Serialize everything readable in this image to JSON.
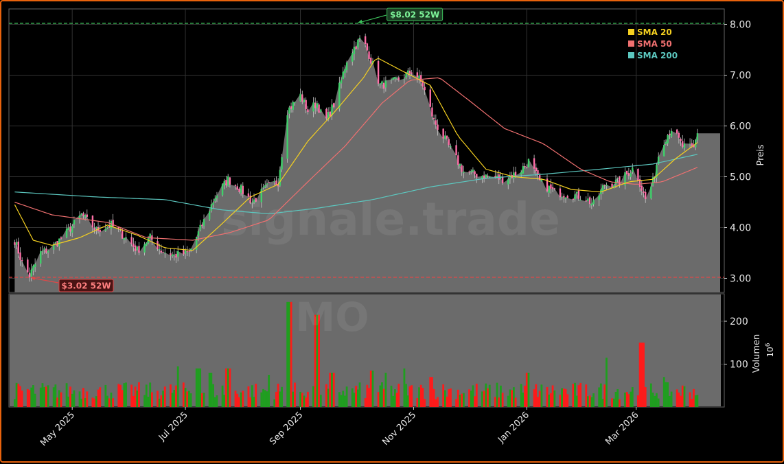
{
  "watermark": {
    "main": "signale.trade",
    "sub": "MO"
  },
  "colors": {
    "frame": "#e8620c",
    "up": "#1f9e1f",
    "down": "#ff1a1a",
    "sma20": "#f5d020",
    "sma50": "#f07070",
    "sma200": "#5cc8c0",
    "high_line": "#3cbf5a",
    "low_line": "#e04848",
    "area": "#6b6b6b"
  },
  "annotations": {
    "high": {
      "label": "$8.02 52W",
      "value": 8.02,
      "date": "2025-10-01"
    },
    "low": {
      "label": "$3.02 52W",
      "value": 3.02,
      "date": "2025-04-08"
    }
  },
  "legend": {
    "placement": "top-right",
    "items": [
      {
        "label": "SMA 20",
        "color": "#f5d020"
      },
      {
        "label": "SMA 50",
        "color": "#f07070"
      },
      {
        "label": "SMA 200",
        "color": "#5cc8c0"
      }
    ]
  },
  "chart_data": [
    {
      "type": "candlestick",
      "title": "",
      "xlabel": "",
      "ylabel": "Preis",
      "ylim": [
        2.7,
        8.3
      ],
      "yticks": [
        "3.00",
        "4.00",
        "5.00",
        "6.00",
        "7.00",
        "8.00"
      ],
      "x_range": [
        "2025-03-29",
        "2026-04-06"
      ],
      "grid": true,
      "price_keypoints": [
        [
          "2025-03-31",
          3.75
        ],
        [
          "2025-04-04",
          3.3
        ],
        [
          "2025-04-08",
          3.05
        ],
        [
          "2025-04-14",
          3.5
        ],
        [
          "2025-04-20",
          3.6
        ],
        [
          "2025-04-28",
          3.9
        ],
        [
          "2025-05-06",
          4.25
        ],
        [
          "2025-05-14",
          3.95
        ],
        [
          "2025-05-22",
          4.05
        ],
        [
          "2025-05-30",
          3.8
        ],
        [
          "2025-06-05",
          3.55
        ],
        [
          "2025-06-12",
          3.8
        ],
        [
          "2025-06-18",
          3.55
        ],
        [
          "2025-06-25",
          3.45
        ],
        [
          "2025-07-03",
          3.5
        ],
        [
          "2025-07-10",
          4.05
        ],
        [
          "2025-07-17",
          4.6
        ],
        [
          "2025-07-24",
          4.95
        ],
        [
          "2025-07-31",
          4.75
        ],
        [
          "2025-08-06",
          4.5
        ],
        [
          "2025-08-14",
          4.8
        ],
        [
          "2025-08-20",
          4.9
        ],
        [
          "2025-08-25",
          6.3
        ],
        [
          "2025-09-01",
          6.6
        ],
        [
          "2025-09-05",
          6.3
        ],
        [
          "2025-09-10",
          6.45
        ],
        [
          "2025-09-14",
          6.05
        ],
        [
          "2025-09-20",
          6.5
        ],
        [
          "2025-09-26",
          7.3
        ],
        [
          "2025-09-30",
          7.55
        ],
        [
          "2025-10-04",
          7.75
        ],
        [
          "2025-10-08",
          7.4
        ],
        [
          "2025-10-14",
          6.8
        ],
        [
          "2025-10-20",
          6.85
        ],
        [
          "2025-10-26",
          6.95
        ],
        [
          "2025-11-01",
          7.1
        ],
        [
          "2025-11-06",
          6.8
        ],
        [
          "2025-11-12",
          6.1
        ],
        [
          "2025-11-20",
          5.6
        ],
        [
          "2025-11-28",
          5.1
        ],
        [
          "2025-12-04",
          5.05
        ],
        [
          "2025-12-12",
          5.0
        ],
        [
          "2025-12-20",
          4.95
        ],
        [
          "2025-12-28",
          5.1
        ],
        [
          "2026-01-02",
          5.3
        ],
        [
          "2026-01-08",
          4.9
        ],
        [
          "2026-01-16",
          4.7
        ],
        [
          "2026-01-24",
          4.65
        ],
        [
          "2026-02-01",
          4.6
        ],
        [
          "2026-02-06",
          4.45
        ],
        [
          "2026-02-12",
          4.85
        ],
        [
          "2026-02-20",
          4.9
        ],
        [
          "2026-02-28",
          5.2
        ],
        [
          "2026-03-06",
          4.55
        ],
        [
          "2026-03-10",
          4.9
        ],
        [
          "2026-03-14",
          5.6
        ],
        [
          "2026-03-20",
          5.95
        ],
        [
          "2026-03-26",
          5.6
        ],
        [
          "2026-04-01",
          5.55
        ],
        [
          "2026-04-04",
          6.05
        ]
      ],
      "sma20_keypoints": [
        [
          "2025-03-31",
          4.45
        ],
        [
          "2025-04-10",
          3.75
        ],
        [
          "2025-04-20",
          3.65
        ],
        [
          "2025-05-05",
          3.8
        ],
        [
          "2025-05-20",
          4.05
        ],
        [
          "2025-06-05",
          3.85
        ],
        [
          "2025-06-20",
          3.6
        ],
        [
          "2025-07-05",
          3.55
        ],
        [
          "2025-07-20",
          4.05
        ],
        [
          "2025-08-05",
          4.6
        ],
        [
          "2025-08-20",
          4.85
        ],
        [
          "2025-09-05",
          5.7
        ],
        [
          "2025-09-20",
          6.3
        ],
        [
          "2025-10-05",
          6.95
        ],
        [
          "2025-10-12",
          7.35
        ],
        [
          "2025-10-25",
          7.1
        ],
        [
          "2025-11-10",
          6.8
        ],
        [
          "2025-11-25",
          5.8
        ],
        [
          "2025-12-10",
          5.15
        ],
        [
          "2025-12-25",
          5.0
        ],
        [
          "2026-01-10",
          4.95
        ],
        [
          "2026-01-25",
          4.75
        ],
        [
          "2026-02-10",
          4.7
        ],
        [
          "2026-02-25",
          4.9
        ],
        [
          "2026-03-10",
          4.95
        ],
        [
          "2026-03-22",
          5.35
        ],
        [
          "2026-04-04",
          5.7
        ]
      ],
      "sma50_keypoints": [
        [
          "2025-03-31",
          4.5
        ],
        [
          "2025-04-20",
          4.25
        ],
        [
          "2025-05-20",
          4.1
        ],
        [
          "2025-06-10",
          3.8
        ],
        [
          "2025-07-05",
          3.75
        ],
        [
          "2025-07-25",
          3.9
        ],
        [
          "2025-08-15",
          4.15
        ],
        [
          "2025-09-05",
          4.9
        ],
        [
          "2025-09-25",
          5.6
        ],
        [
          "2025-10-15",
          6.45
        ],
        [
          "2025-10-30",
          6.9
        ],
        [
          "2025-11-15",
          6.95
        ],
        [
          "2025-12-01",
          6.5
        ],
        [
          "2025-12-20",
          5.95
        ],
        [
          "2026-01-10",
          5.65
        ],
        [
          "2026-01-30",
          5.15
        ],
        [
          "2026-02-15",
          4.9
        ],
        [
          "2026-03-01",
          4.85
        ],
        [
          "2026-03-15",
          4.9
        ],
        [
          "2026-04-04",
          5.2
        ]
      ],
      "sma200_keypoints": [
        [
          "2025-03-31",
          4.7
        ],
        [
          "2025-05-15",
          4.6
        ],
        [
          "2025-06-20",
          4.55
        ],
        [
          "2025-07-20",
          4.35
        ],
        [
          "2025-08-15",
          4.27
        ],
        [
          "2025-09-10",
          4.38
        ],
        [
          "2025-10-10",
          4.55
        ],
        [
          "2025-11-10",
          4.8
        ],
        [
          "2025-12-10",
          4.97
        ],
        [
          "2026-01-10",
          5.05
        ],
        [
          "2026-02-10",
          5.15
        ],
        [
          "2026-03-10",
          5.25
        ],
        [
          "2026-04-04",
          5.45
        ]
      ]
    },
    {
      "type": "bar",
      "title": "",
      "ylabel": "Volumen",
      "yunit": "10^6",
      "ylim": [
        0,
        240
      ],
      "yticks": [
        "100",
        "200"
      ],
      "xticks": [
        "May 2025",
        "Jul 2025",
        "Sep 2025",
        "Nov 2025",
        "Jan 2026",
        "Mar 2026"
      ],
      "xtick_dates": [
        "2025-05-01",
        "2025-07-01",
        "2025-09-01",
        "2025-11-01",
        "2026-01-01",
        "2026-03-01"
      ],
      "volume_spikes": [
        [
          "2025-06-28",
          95
        ],
        [
          "2025-07-08",
          90
        ],
        [
          "2025-07-14",
          80
        ],
        [
          "2025-07-24",
          90
        ],
        [
          "2025-08-16",
          75
        ],
        [
          "2025-08-26",
          245
        ],
        [
          "2025-09-10",
          215
        ],
        [
          "2025-09-18",
          80
        ],
        [
          "2025-09-20",
          80
        ],
        [
          "2025-10-10",
          85
        ],
        [
          "2025-10-18",
          80
        ],
        [
          "2025-10-26",
          90
        ],
        [
          "2025-11-10",
          70
        ],
        [
          "2026-01-02",
          80
        ],
        [
          "2026-02-14",
          115
        ],
        [
          "2026-03-04",
          150
        ],
        [
          "2026-03-15",
          70
        ]
      ]
    }
  ]
}
